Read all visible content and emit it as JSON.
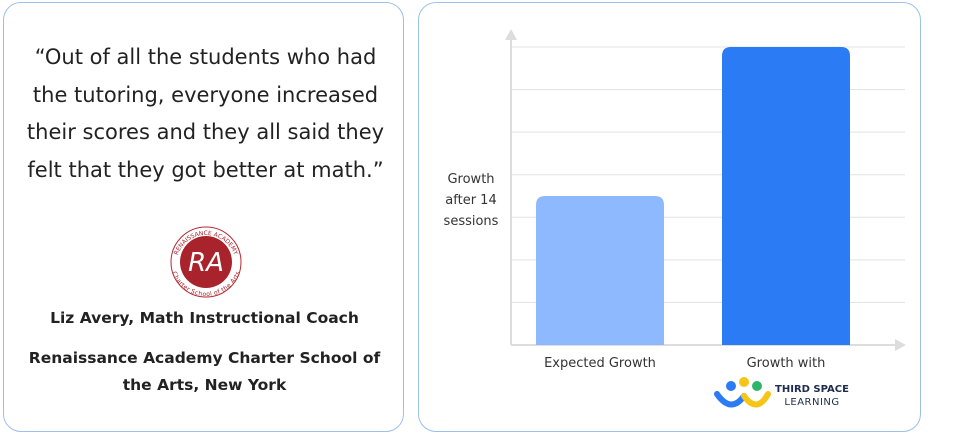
{
  "quote": "“Out of all the students who had the tutoring, everyone increased their scores and they all said they felt that they got better at math.”",
  "school_logo": {
    "initials": "RA",
    "ring_top": "RENAISSANCE ACADEMY",
    "ring_bottom": "Charter School of the Arts"
  },
  "person": "Liz Avery, Math Instructional Coach",
  "organization": "Renaissance Academy Charter School of the Arts, New York",
  "chart_data": {
    "type": "bar",
    "y_label": "Growth after 14 sessions",
    "categories": [
      "Expected Growth",
      "Growth with"
    ],
    "values": [
      3.5,
      7
    ],
    "colors": [
      "#8fb9ff",
      "#2a7bf4"
    ],
    "ylim": [
      0,
      7
    ],
    "yticks": [
      1,
      2,
      3,
      4,
      5,
      6,
      7
    ],
    "grid": true,
    "brand_logo": [
      "THIRD SPACE",
      "LEARNING"
    ]
  }
}
